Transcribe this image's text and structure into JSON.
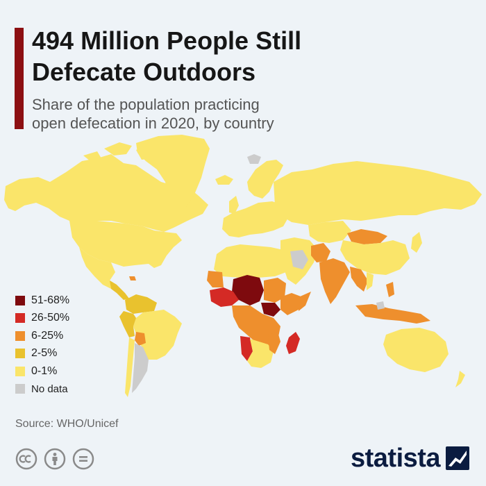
{
  "header": {
    "title_line1": "494 Million People Still",
    "title_line2": "Defecate Outdoors",
    "subtitle_line1": "Share of the population practicing",
    "subtitle_line2": "open defecation in 2020, by country",
    "accent_color": "#8c0f12"
  },
  "legend": {
    "items": [
      {
        "label": "51-68%",
        "color": "#7e0a0e"
      },
      {
        "label": "26-50%",
        "color": "#d42a25"
      },
      {
        "label": "6-25%",
        "color": "#ee8f2d"
      },
      {
        "label": "2-5%",
        "color": "#e9c22e"
      },
      {
        "label": "0-1%",
        "color": "#fae56a"
      },
      {
        "label": "No data",
        "color": "#cccccc"
      }
    ]
  },
  "footer": {
    "source": "Source: WHO/Unicef",
    "brand": "statista",
    "license_icons": [
      "cc-icon",
      "attribution-icon",
      "no-derivatives-icon"
    ]
  }
}
